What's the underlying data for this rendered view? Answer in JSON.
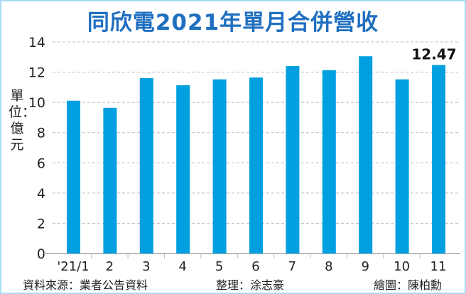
{
  "chart_data": {
    "type": "bar",
    "title": "同欣電2021年單月合併營收",
    "ylabel": "單位：億元",
    "categories": [
      "'21/1",
      "2",
      "3",
      "4",
      "5",
      "6",
      "7",
      "8",
      "9",
      "10",
      "11"
    ],
    "values": [
      10.11,
      9.64,
      11.6,
      11.13,
      11.52,
      11.64,
      12.4,
      12.13,
      13.05,
      11.52,
      12.47
    ],
    "data_labels": {
      "10": "12.47"
    },
    "yticks": [
      0,
      2,
      4,
      6,
      8,
      10,
      12,
      14
    ],
    "ylim": [
      0,
      14
    ],
    "grid": true,
    "bar_color": "#009fe0",
    "title_color": "#1f6fc0"
  },
  "footer": {
    "source": "資料來源：業者公告資料",
    "editor": "整理：涂志豪",
    "artist": "繪圖：陳柏勳"
  }
}
